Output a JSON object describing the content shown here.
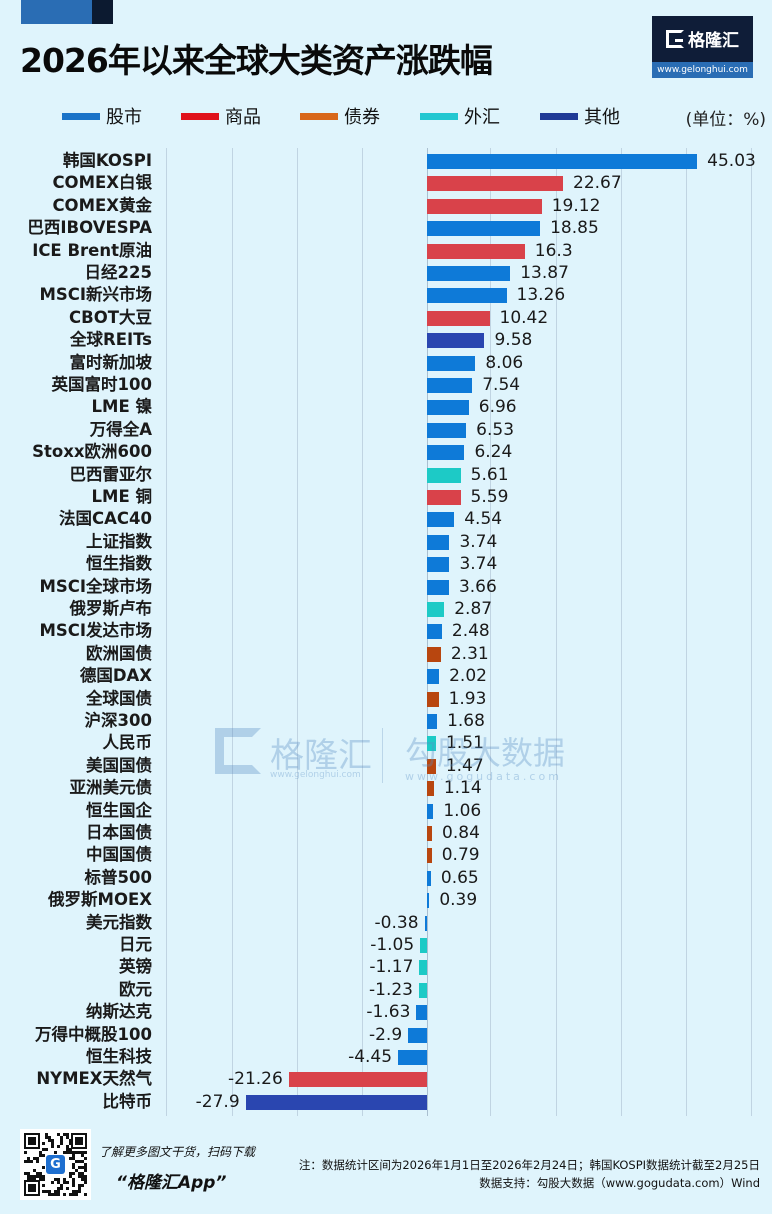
{
  "header": {
    "title": "2026年以来全球大类资产涨跌幅",
    "logo_text": "格隆汇",
    "logo_url": "www.gelonghui.com",
    "unit": "(单位：%)"
  },
  "legend": [
    {
      "label": "股市",
      "color": "#1a73c8"
    },
    {
      "label": "商品",
      "color": "#e0121c"
    },
    {
      "label": "债券",
      "color": "#d8671a"
    },
    {
      "label": "外汇",
      "color": "#22c7d1"
    },
    {
      "label": "其他",
      "color": "#1f3a96"
    }
  ],
  "colors": {
    "stock": "#0e7ad8",
    "commodity": "#d9424a",
    "bond": "#b8460f",
    "fx": "#1dcac6",
    "other": "#2a46b0",
    "background": "#dff4fc"
  },
  "watermark": {
    "brand1": "格隆汇",
    "url1": "www.gelonghui.com",
    "brand2": "勾股大数据",
    "url2": "www.gogudata.com"
  },
  "footer": {
    "promo": "了解更多图文干货，扫码下载",
    "app": "“格隆汇App”",
    "note": "注：数据统计区间为2026年1月1日至2026年2月24日；韩国KOSPI数据统计截至2月25日",
    "source": "数据支持：勾股大数据（www.gogudata.com）Wind"
  },
  "chart_data": {
    "type": "bar",
    "orientation": "horizontal",
    "title": "2026年以来全球大类资产涨跌幅",
    "xlabel": "",
    "ylabel": "",
    "unit": "%",
    "grid": true,
    "legend_position": "top",
    "categories": [
      "韩国KOSPI",
      "COMEX白银",
      "COMEX黄金",
      "巴西IBOVESPA",
      "ICE Brent原油",
      "日经225",
      "MSCI新兴市场",
      "CBOT大豆",
      "全球REITs",
      "富时新加坡",
      "英国富时100",
      "LME 镍",
      "万得全A",
      "Stoxx欧洲600",
      "巴西雷亚尔",
      "LME 铜",
      "法国CAC40",
      "上证指数",
      "恒生指数",
      "MSCI全球市场",
      "俄罗斯卢布",
      "MSCI发达市场",
      "欧洲国债",
      "德国DAX",
      "全球国债",
      "沪深300",
      "人民币",
      "美国国债",
      "亚洲美元债",
      "恒生国企",
      "日本国债",
      "中国国债",
      "标普500",
      "俄罗斯MOEX",
      "美元指数",
      "日元",
      "英镑",
      "欧元",
      "纳斯达克",
      "万得中概股100",
      "恒生科技",
      "NYMEX天然气",
      "比特币"
    ],
    "values": [
      45.03,
      22.67,
      19.12,
      18.85,
      16.3,
      13.87,
      13.26,
      10.42,
      9.58,
      8.06,
      7.54,
      6.96,
      6.53,
      6.24,
      5.61,
      5.59,
      4.54,
      3.74,
      3.74,
      3.66,
      2.87,
      2.48,
      2.31,
      2.02,
      1.93,
      1.68,
      1.51,
      1.47,
      1.14,
      1.06,
      0.84,
      0.79,
      0.65,
      0.39,
      -0.38,
      -1.05,
      -1.17,
      -1.23,
      -1.63,
      -2.9,
      -4.45,
      -21.26,
      -27.9
    ],
    "groups": [
      "stock",
      "commodity",
      "commodity",
      "stock",
      "commodity",
      "stock",
      "stock",
      "commodity",
      "other",
      "stock",
      "stock",
      "stock",
      "stock",
      "stock",
      "fx",
      "commodity",
      "stock",
      "stock",
      "stock",
      "stock",
      "fx",
      "stock",
      "bond",
      "stock",
      "bond",
      "stock",
      "fx",
      "bond",
      "bond",
      "stock",
      "bond",
      "bond",
      "stock",
      "stock",
      "stock",
      "fx",
      "fx",
      "fx",
      "stock",
      "stock",
      "stock",
      "commodity",
      "other"
    ],
    "legend": [
      "股市",
      "商品",
      "债券",
      "外汇",
      "其他"
    ],
    "xlim": [
      -40,
      50
    ]
  }
}
